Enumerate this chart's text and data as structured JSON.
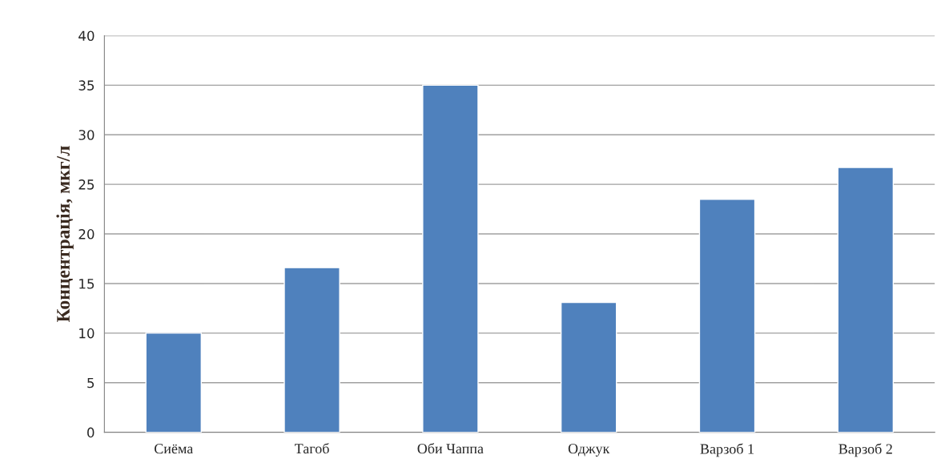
{
  "chart_data": {
    "type": "bar",
    "ylabel": "Концентрація, мкг/л",
    "categories": [
      "Сиёма",
      "Тагоб",
      "Оби Чаппа",
      "Оджук",
      "Варзоб 1",
      "Варзоб 2"
    ],
    "values": [
      10.0,
      16.6,
      35.0,
      13.1,
      23.5,
      26.7
    ],
    "color": "#4f81bd",
    "ylim": [
      0,
      40
    ],
    "yticks": [
      0,
      5,
      10,
      15,
      20,
      25,
      30,
      35,
      40
    ],
    "grid": "y"
  }
}
